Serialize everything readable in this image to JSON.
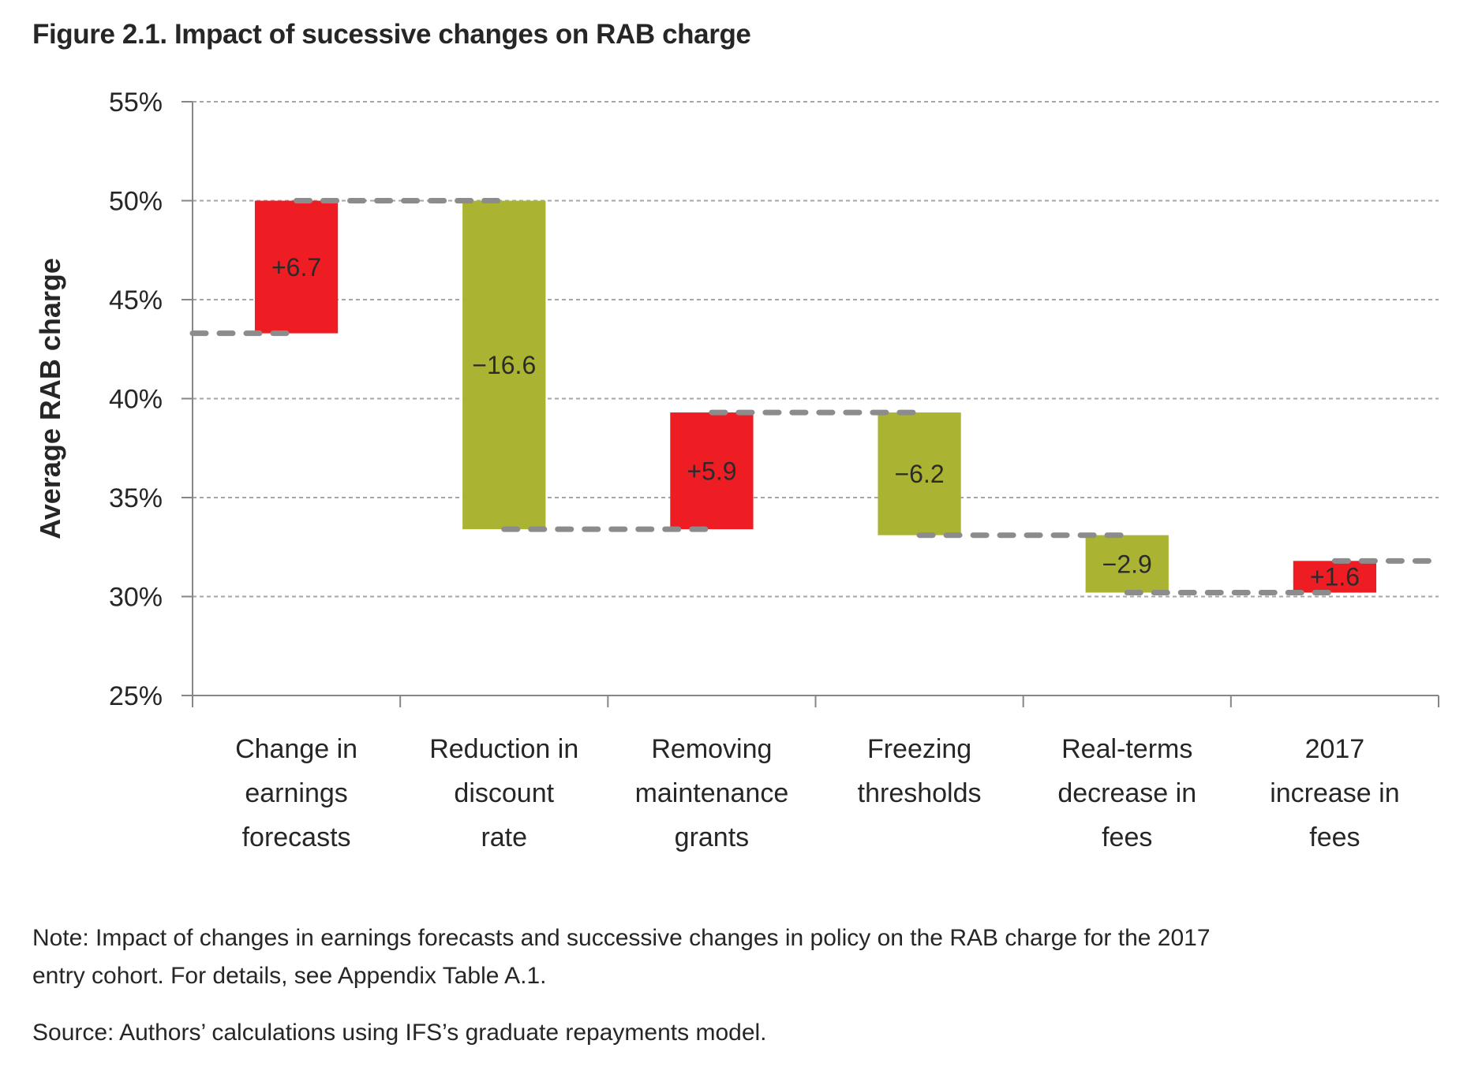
{
  "title": "Figure 2.1. Impact of sucessive changes on RAB charge",
  "note": "Note: Impact of changes in earnings forecasts and successive changes in policy on the RAB charge for the 2017\nentry cohort. For details, see Appendix Table A.1.",
  "source": "Source: Authors’ calculations using IFS’s graduate repayments model.",
  "chart_data": {
    "type": "bar",
    "subtype": "waterfall",
    "title": "Figure 2.1. Impact of sucessive changes on RAB charge",
    "ylabel": "Average RAB charge",
    "xlabel": "",
    "ylim": [
      25,
      55
    ],
    "ytick_step": 5,
    "ytick_labels": [
      "25%",
      "30%",
      "35%",
      "40%",
      "45%",
      "50%",
      "55%"
    ],
    "grid": "horizontal dotted",
    "legend": "none",
    "start_level": 43.3,
    "categories": [
      "Change in\nearnings\nforecasts",
      "Reduction in\ndiscount\nrate",
      "Removing\nmaintenance\ngrants",
      "Freezing\nthresholds",
      "Real-terms\ndecrease in\nfees",
      "2017\nincrease in\nfees"
    ],
    "deltas": [
      6.7,
      -16.6,
      5.9,
      -6.2,
      -2.9,
      1.6
    ],
    "bar_labels": [
      "+6.7",
      "−16.6",
      "+5.9",
      "−6.2",
      "−2.9",
      "+1.6"
    ],
    "running_levels": [
      43.3,
      50.0,
      33.4,
      39.3,
      33.1,
      30.2,
      31.8
    ],
    "connector_style": "thick gray dashes between bar centers",
    "colors": {
      "increase": "#ee1c23",
      "decrease": "#aab432",
      "connector": "#8c8c8c",
      "grid": "#a6a6a6",
      "axis": "#868686",
      "text": "#262626",
      "bar_label": "#2b2b2b"
    }
  }
}
